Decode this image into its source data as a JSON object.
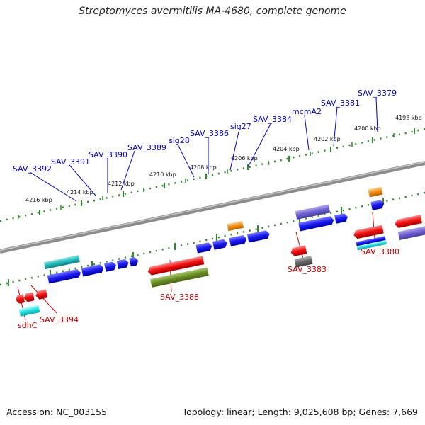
{
  "title": "Streptomyces avermitilis MA-4680, complete genome",
  "accession": "Accession: NC_003155",
  "stats": "Topology: linear; Length: 9,025,608 bp; Genes: 7,669",
  "colors": {
    "blue_gene": "#1a1aee",
    "blue_label": "#0000cc",
    "red_gene": "#ee1111",
    "red_label": "#cc0000",
    "teal": "#20b8b8",
    "cyan": "#22e0e0",
    "purple": "#6e5fcf",
    "orange": "#f08c10",
    "olive": "#6b8e23",
    "gray": "#666666",
    "tick": "#2a8a2a",
    "backbone": "#8c8c8c"
  },
  "ticks": [
    {
      "label": "4216 kbp"
    },
    {
      "label": "4214 kbp"
    },
    {
      "label": "4212 kbp"
    },
    {
      "label": "4210 kbp"
    },
    {
      "label": "4208 kbp"
    },
    {
      "label": "4206 kbp"
    },
    {
      "label": "4204 kbp"
    },
    {
      "label": "4202 kbp"
    },
    {
      "label": "4200 kbp"
    },
    {
      "label": "4198 kbp"
    }
  ],
  "labels_top": [
    "SAV_3392",
    "SAV_3391",
    "SAV_3390",
    "SAV_3389",
    "sig28",
    "SAV_3386",
    "sig27",
    "SAV_3384",
    "mcmA2",
    "SAV_3381",
    "SAV_3379"
  ],
  "labels_bottom": [
    "sdhC",
    "SAV_3394",
    "SAV_3388",
    "SAV_3383",
    "SAV_3380"
  ]
}
